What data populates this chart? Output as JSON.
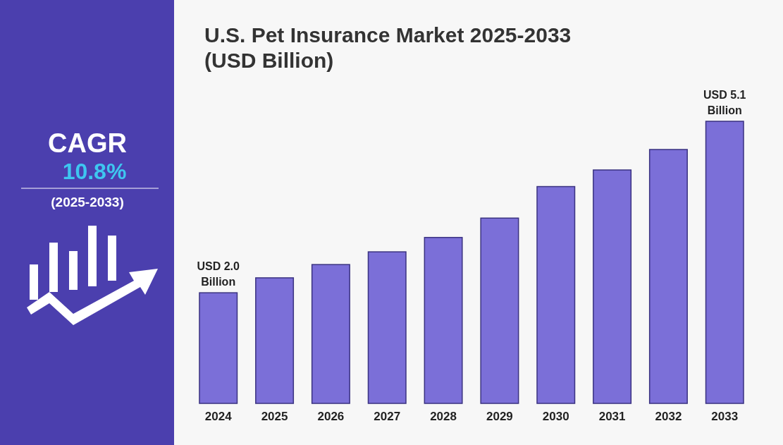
{
  "chart_data": {
    "type": "bar",
    "title": "U.S. Pet Insurance Market 2025-2033\n(USD Billion)",
    "categories": [
      "2024",
      "2025",
      "2026",
      "2027",
      "2028",
      "2029",
      "2030",
      "2031",
      "2032",
      "2033"
    ],
    "values": [
      2.0,
      2.27,
      2.51,
      2.74,
      3.0,
      3.35,
      3.92,
      4.22,
      4.59,
      5.1
    ],
    "value_labels": [
      "USD 2.0 Billion",
      null,
      null,
      null,
      null,
      null,
      null,
      null,
      null,
      "USD 5.1 Billion"
    ],
    "color": "#7b6fd8",
    "annotations": [
      "CAGR",
      "10.8%",
      "(2025-2033)"
    ]
  }
}
